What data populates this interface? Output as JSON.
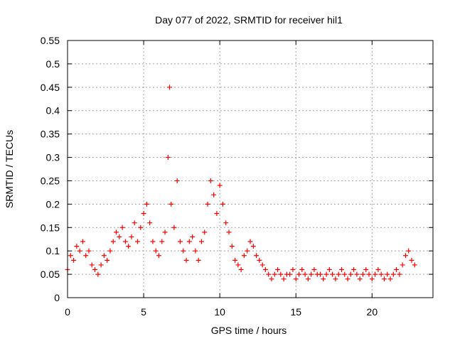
{
  "chart_data": {
    "type": "scatter",
    "title": "Day 077 of 2022, SRMTID for receiver hil1",
    "xlabel": "GPS time / hours",
    "ylabel": "SRMTID / TECUs",
    "xlim": [
      0,
      24
    ],
    "ylim": [
      0,
      0.55
    ],
    "x_ticks": [
      0,
      5,
      10,
      15,
      20
    ],
    "x_tick_labels": [
      "0",
      "5",
      "10",
      "15",
      "20"
    ],
    "y_ticks": [
      0,
      0.05,
      0.1,
      0.15,
      0.2,
      0.25,
      0.3,
      0.35,
      0.4,
      0.45,
      0.5,
      0.55
    ],
    "y_tick_labels": [
      "0",
      "0.05",
      "0.1",
      "0.15",
      "0.2",
      "0.25",
      "0.3",
      "0.35",
      "0.4",
      "0.45",
      "0.5",
      "0.55"
    ],
    "grid": true,
    "marker": "+",
    "color": "#ff0000",
    "series": [
      {
        "name": "SRMTID",
        "x": [
          0.0,
          0.2,
          0.4,
          0.6,
          0.8,
          1.0,
          1.2,
          1.4,
          1.6,
          1.8,
          2.0,
          2.2,
          2.4,
          2.6,
          2.8,
          3.0,
          3.2,
          3.4,
          3.6,
          3.8,
          4.0,
          4.2,
          4.4,
          4.6,
          4.8,
          5.0,
          5.2,
          5.4,
          5.6,
          5.8,
          6.0,
          6.2,
          6.4,
          6.6,
          6.7,
          6.8,
          7.0,
          7.2,
          7.4,
          7.6,
          7.8,
          8.0,
          8.2,
          8.4,
          8.6,
          8.8,
          9.0,
          9.2,
          9.4,
          9.6,
          9.8,
          10.0,
          10.2,
          10.4,
          10.6,
          10.8,
          11.0,
          11.2,
          11.4,
          11.6,
          11.8,
          12.0,
          12.2,
          12.4,
          12.6,
          12.8,
          13.0,
          13.2,
          13.4,
          13.6,
          13.8,
          14.0,
          14.2,
          14.4,
          14.6,
          14.8,
          15.0,
          15.2,
          15.4,
          15.6,
          15.8,
          16.0,
          16.2,
          16.4,
          16.6,
          16.8,
          17.0,
          17.2,
          17.4,
          17.6,
          17.8,
          18.0,
          18.2,
          18.4,
          18.6,
          18.8,
          19.0,
          19.2,
          19.4,
          19.6,
          19.8,
          20.0,
          20.2,
          20.4,
          20.6,
          20.8,
          21.0,
          21.2,
          21.4,
          21.6,
          21.8,
          22.0,
          22.2,
          22.4,
          22.6,
          22.8
        ],
        "y": [
          0.06,
          0.09,
          0.08,
          0.11,
          0.1,
          0.12,
          0.09,
          0.1,
          0.07,
          0.06,
          0.05,
          0.07,
          0.09,
          0.08,
          0.1,
          0.12,
          0.14,
          0.13,
          0.15,
          0.12,
          0.11,
          0.13,
          0.16,
          0.12,
          0.15,
          0.18,
          0.2,
          0.16,
          0.12,
          0.1,
          0.09,
          0.12,
          0.14,
          0.3,
          0.45,
          0.2,
          0.15,
          0.25,
          0.12,
          0.1,
          0.08,
          0.12,
          0.13,
          0.1,
          0.08,
          0.12,
          0.14,
          0.2,
          0.25,
          0.22,
          0.18,
          0.24,
          0.2,
          0.16,
          0.14,
          0.11,
          0.08,
          0.07,
          0.06,
          0.09,
          0.1,
          0.12,
          0.11,
          0.09,
          0.08,
          0.07,
          0.06,
          0.05,
          0.04,
          0.05,
          0.06,
          0.05,
          0.04,
          0.05,
          0.05,
          0.06,
          0.04,
          0.05,
          0.06,
          0.05,
          0.04,
          0.05,
          0.06,
          0.05,
          0.05,
          0.04,
          0.05,
          0.06,
          0.05,
          0.04,
          0.05,
          0.06,
          0.05,
          0.04,
          0.05,
          0.06,
          0.05,
          0.04,
          0.05,
          0.06,
          0.05,
          0.04,
          0.05,
          0.06,
          0.05,
          0.04,
          0.05,
          0.04,
          0.05,
          0.06,
          0.05,
          0.07,
          0.09,
          0.1,
          0.08,
          0.07
        ]
      }
    ]
  }
}
